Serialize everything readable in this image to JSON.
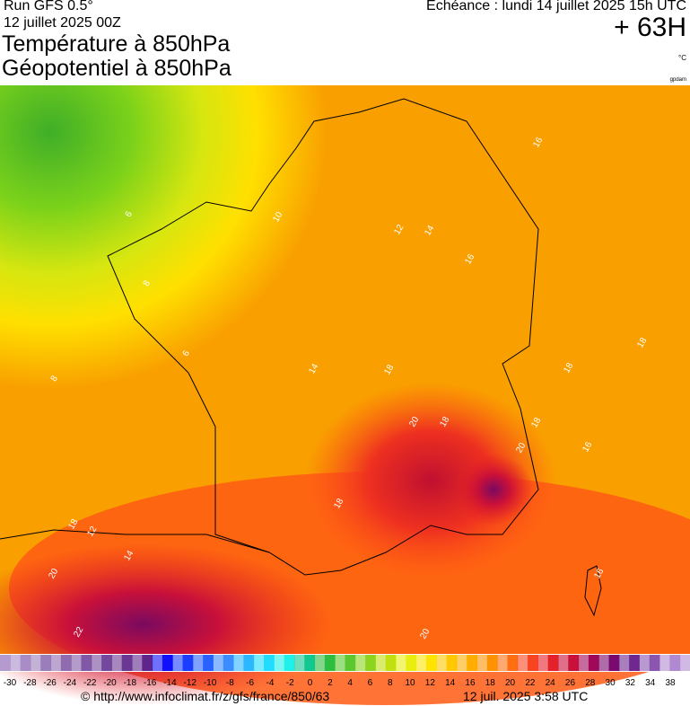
{
  "header": {
    "run": "Run GFS 0.5°",
    "run_date": "12 juillet 2025 00Z",
    "title_1": "Température à 850hPa",
    "title_2": "Géopotentiel à 850hPa",
    "valid": "Echéance : lundi 14 juillet 2025 15h UTC",
    "lead": "+ 63H",
    "unit": "°C",
    "unit_2": "gpdam"
  },
  "map": {
    "contour_labels": [
      "16",
      "6",
      "10",
      "12",
      "14",
      "16",
      "8",
      "6",
      "18",
      "18",
      "16",
      "20",
      "18",
      "20",
      "18",
      "18",
      "14",
      "12",
      "16",
      "18",
      "20",
      "22",
      "20",
      "18",
      "14",
      "8"
    ]
  },
  "colorbar": {
    "labels": [
      -30,
      -28,
      -26,
      -24,
      -22,
      -20,
      -18,
      -16,
      -14,
      -12,
      -10,
      -8,
      -6,
      -4,
      -2,
      0,
      2,
      4,
      6,
      8,
      10,
      12,
      14,
      16,
      18,
      20,
      22,
      24,
      26,
      28,
      30,
      32,
      34,
      38
    ],
    "colors": [
      "#b59ad0",
      "#a98cc6",
      "#9c7dbb",
      "#8f6cb0",
      "#8058a6",
      "#74489c",
      "#6a3793",
      "#5f258c",
      "#1010ff",
      "#1b3dff",
      "#2a62ff",
      "#3b8cff",
      "#2cb8ff",
      "#22dcff",
      "#20f0e8",
      "#10c890",
      "#2ebd40",
      "#5cc830",
      "#8cd420",
      "#c0e010",
      "#e8ee10",
      "#ffe400",
      "#ffc800",
      "#ffae00",
      "#ff9200",
      "#ff6e10",
      "#f84420",
      "#e4202a",
      "#c8103a",
      "#a0085a",
      "#7a0a70",
      "#6e2890",
      "#8a56b0",
      "#b08ad0"
    ]
  },
  "footer": {
    "source": "© http://www.infoclimat.fr/z/gfs/france/850/63",
    "timestamp": "12 juil. 2025  3:58 UTC"
  }
}
